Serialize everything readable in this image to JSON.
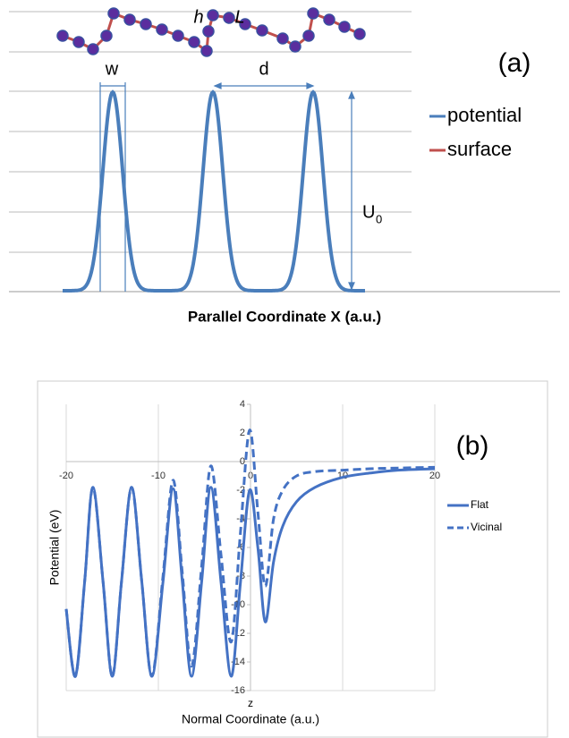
{
  "chart_data": [
    {
      "type": "schematic",
      "annotation": "(a)",
      "labels": {
        "w": "w",
        "d": "d",
        "h": "h",
        "L": "L",
        "U": "U",
        "U_sub": "0"
      },
      "legend": [
        {
          "name": "potential",
          "color": "#4a7ebb"
        },
        {
          "name": "surface",
          "color": "#c0504d"
        }
      ],
      "xlabel": "Parallel Coordinate X (a.u.)"
    },
    {
      "type": "line",
      "annotation": "(b)",
      "xlabel": "Normal Coordinate (a.u.)",
      "ylabel": "Potential (eV)",
      "axis_label": "z",
      "x": [
        -20,
        -19,
        -18,
        -17.1,
        -16,
        -15,
        -14,
        -12.9,
        -11.8,
        -10.7,
        -9.5,
        -8.4,
        -7.4,
        -6.4,
        -5.3,
        -4.3,
        -3.2,
        -2.1,
        -1.1,
        -0.1,
        0.8,
        1.6,
        2.5,
        3.5,
        5,
        7,
        10,
        13,
        16,
        20
      ],
      "series": [
        {
          "name": "Flat",
          "color": "#4472c4",
          "dash": false,
          "values": [
            -10.3,
            -15,
            -8.4,
            -1.8,
            -8.4,
            -15,
            -8.4,
            -1.8,
            -8.4,
            -15,
            -8.4,
            -1.9,
            -8.4,
            -15,
            -8.4,
            -1.8,
            -8.4,
            -15,
            -8.5,
            -2,
            -6,
            -11.2,
            -7,
            -4.5,
            -2.8,
            -1.8,
            -1.1,
            -0.8,
            -0.6,
            -0.5
          ]
        },
        {
          "name": "Vicinal",
          "color": "#4472c4",
          "dash": true,
          "values": [
            -10.3,
            -15,
            -8.4,
            -1.8,
            -8.4,
            -15,
            -8.4,
            -1.8,
            -8.4,
            -15,
            -8,
            -1.3,
            -7.8,
            -14.3,
            -7.3,
            -0.3,
            -6.5,
            -12.6,
            -5,
            2.2,
            -3.5,
            -8.7,
            -4,
            -2,
            -1,
            -0.7,
            -0.6,
            -0.5,
            -0.45,
            -0.4
          ]
        }
      ],
      "xlim": [
        -20,
        20
      ],
      "xticks": [
        -20,
        -10,
        0,
        10,
        20
      ],
      "ylim": [
        -16,
        4
      ],
      "yticks": [
        -16,
        -14,
        -12,
        -10,
        -8,
        -6,
        -4,
        -2,
        0,
        2,
        4
      ],
      "grid": "x",
      "legend": "right"
    }
  ]
}
